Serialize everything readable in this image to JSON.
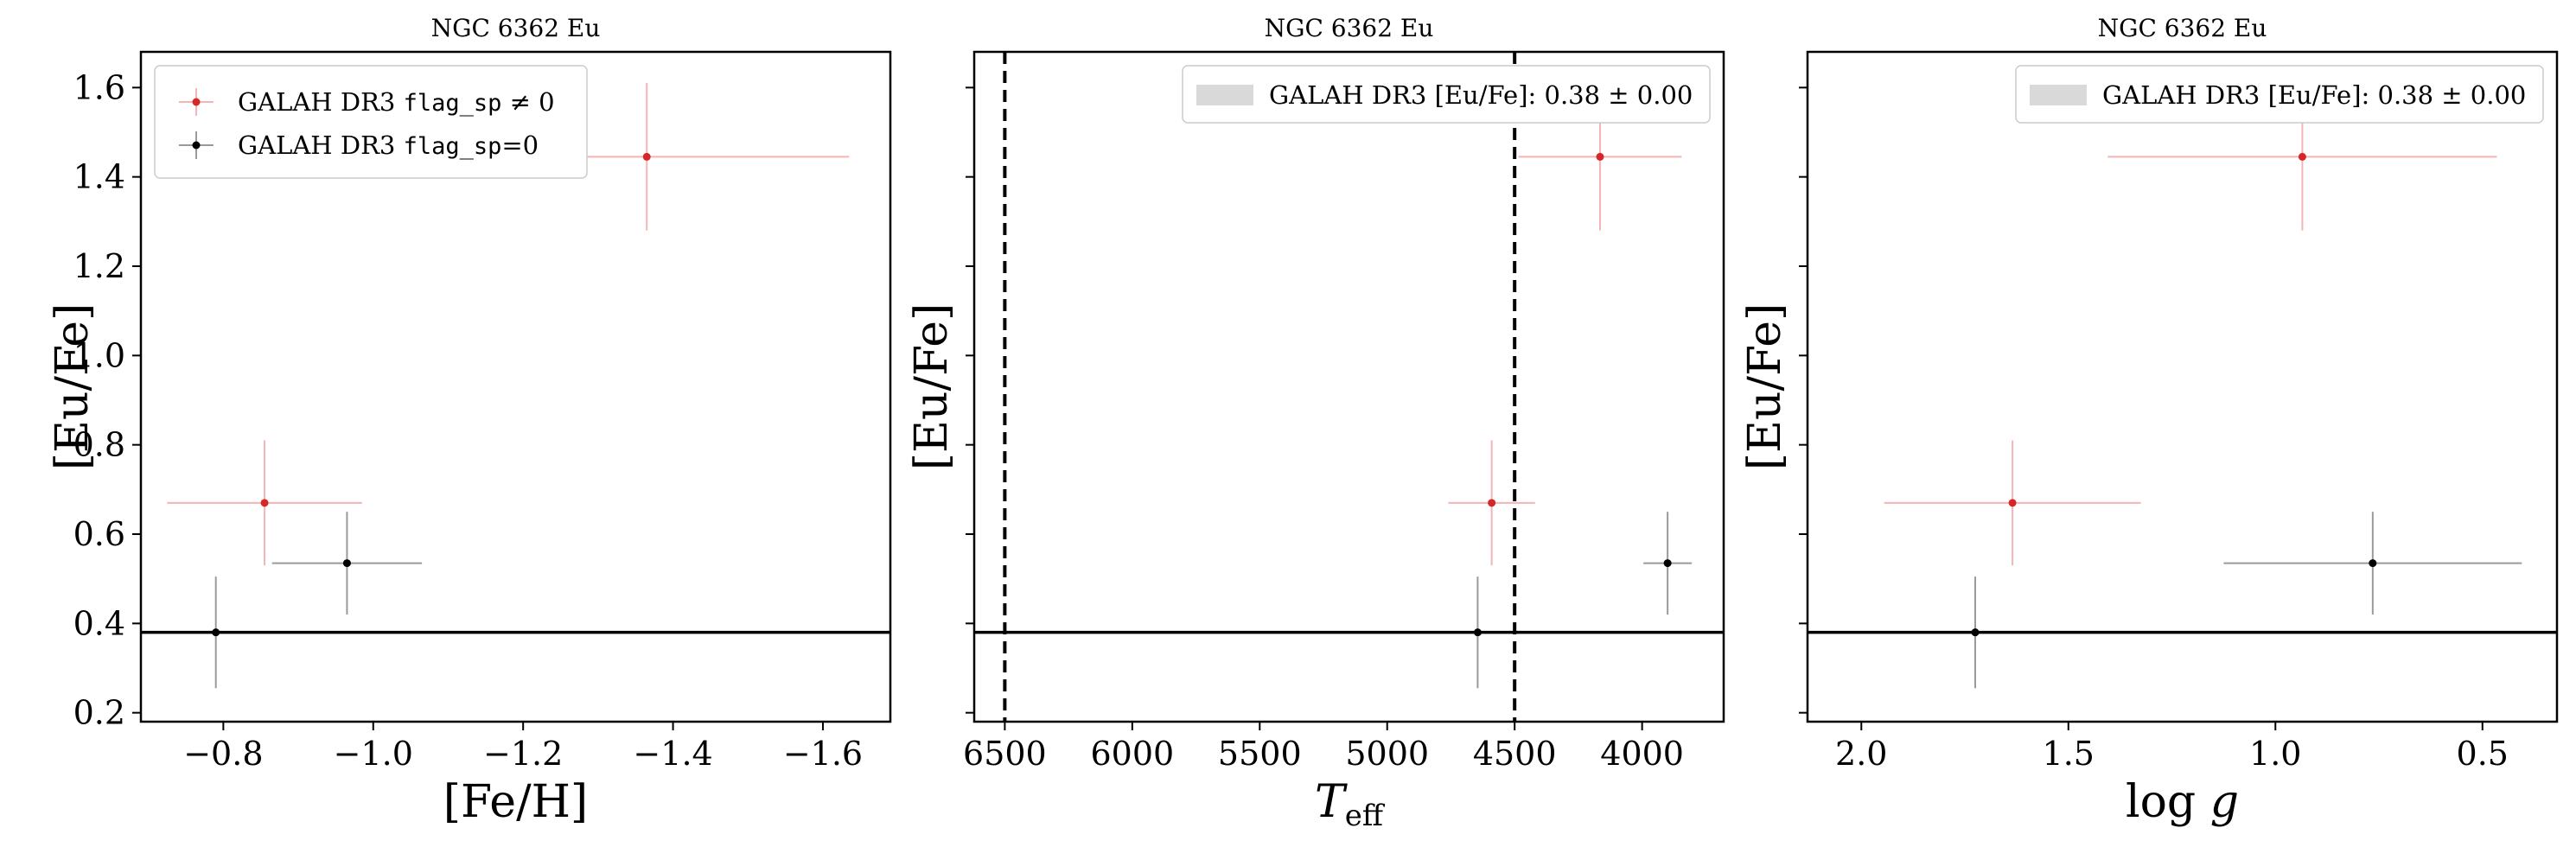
{
  "colors": {
    "flagged": "#d62728",
    "flagged_err": "#f3b5b5",
    "clean": "#000000",
    "clean_err": "#9a9a9a",
    "band": "#d9d9d9"
  },
  "chart_data": [
    {
      "type": "scatter",
      "title": "NGC 6362 Eu",
      "xlabel": "[Fe/H]",
      "ylabel": "[Eu/Fe]",
      "xlim": [
        -0.69,
        -1.69
      ],
      "ylim": [
        0.18,
        1.68
      ],
      "xticks": [
        -0.8,
        -1.0,
        -1.2,
        -1.4,
        -1.6
      ],
      "xtick_labels": [
        "−0.8",
        "−1.0",
        "−1.2",
        "−1.4",
        "−1.6"
      ],
      "yticks": [
        0.2,
        0.4,
        0.6,
        0.8,
        1.0,
        1.2,
        1.4,
        1.6
      ],
      "ytick_labels": [
        "0.2",
        "0.4",
        "0.6",
        "0.8",
        "1.0",
        "1.2",
        "1.4",
        "1.6"
      ],
      "hline": 0.38,
      "vlines": [],
      "legend": {
        "placement": "upper left",
        "entries": [
          {
            "marker": "flagged",
            "text": "GALAH DR3 ",
            "code": "flag_sp",
            "suffix": " ≠ 0"
          },
          {
            "marker": "clean",
            "text": "GALAH DR3 ",
            "code": "flag_sp",
            "suffix": "=0"
          }
        ]
      },
      "series": [
        {
          "name": "GALAH DR3 flag_sp ≠ 0",
          "points": [
            {
              "x": -0.855,
              "y": 0.67,
              "xerr": 0.13,
              "yerr": 0.14
            },
            {
              "x": -1.365,
              "y": 1.445,
              "xerr": 0.27,
              "yerr": 0.165
            }
          ]
        },
        {
          "name": "GALAH DR3 flag_sp=0",
          "points": [
            {
              "x": -0.79,
              "y": 0.38,
              "xerr": 0.0,
              "yerr": 0.125
            },
            {
              "x": -0.965,
              "y": 0.535,
              "xerr": 0.1,
              "yerr": 0.115
            }
          ]
        }
      ]
    },
    {
      "type": "scatter",
      "title": "NGC 6362 Eu",
      "xlabel": "T_eff",
      "ylabel": "[Eu/Fe]",
      "xlim": [
        6620,
        3680
      ],
      "ylim": [
        0.18,
        1.68
      ],
      "xticks": [
        6500,
        6000,
        5500,
        5000,
        4500,
        4000
      ],
      "xtick_labels": [
        "6500",
        "6000",
        "5500",
        "5000",
        "4500",
        "4000"
      ],
      "yticks": [
        0.2,
        0.4,
        0.6,
        0.8,
        1.0,
        1.2,
        1.4,
        1.6
      ],
      "ytick_labels": [],
      "hline": 0.38,
      "vlines": [
        6500,
        4500
      ],
      "legend": {
        "placement": "upper right",
        "entries": [
          {
            "marker": "band",
            "text": "GALAH DR3 [Eu/Fe]: 0.38 ± 0.00"
          }
        ]
      },
      "series": [
        {
          "name": "GALAH DR3 flag_sp ≠ 0",
          "points": [
            {
              "x": 4590,
              "y": 0.67,
              "xerr": 170,
              "yerr": 0.14
            },
            {
              "x": 4165,
              "y": 1.445,
              "xerr": 320,
              "yerr": 0.165
            }
          ]
        },
        {
          "name": "GALAH DR3 flag_sp=0",
          "points": [
            {
              "x": 4645,
              "y": 0.38,
              "xerr": 0,
              "yerr": 0.125
            },
            {
              "x": 3900,
              "y": 0.535,
              "xerr": 95,
              "yerr": 0.115
            }
          ]
        }
      ]
    },
    {
      "type": "scatter",
      "title": "NGC 6362 Eu",
      "xlabel": "log g",
      "ylabel": "[Eu/Fe]",
      "xlim": [
        2.13,
        0.32
      ],
      "ylim": [
        0.18,
        1.68
      ],
      "xticks": [
        2.0,
        1.5,
        1.0,
        0.5
      ],
      "xtick_labels": [
        "2.0",
        "1.5",
        "1.0",
        "0.5"
      ],
      "yticks": [
        0.2,
        0.4,
        0.6,
        0.8,
        1.0,
        1.2,
        1.4,
        1.6
      ],
      "ytick_labels": [],
      "hline": 0.38,
      "vlines": [],
      "legend": {
        "placement": "upper right",
        "entries": [
          {
            "marker": "band",
            "text": "GALAH DR3 [Eu/Fe]: 0.38 ± 0.00"
          }
        ]
      },
      "series": [
        {
          "name": "GALAH DR3 flag_sp ≠ 0",
          "points": [
            {
              "x": 1.635,
              "y": 0.67,
              "xerr": 0.31,
              "yerr": 0.14
            },
            {
              "x": 0.935,
              "y": 1.445,
              "xerr": 0.47,
              "yerr": 0.165
            }
          ]
        },
        {
          "name": "GALAH DR3 flag_sp=0",
          "points": [
            {
              "x": 1.725,
              "y": 0.38,
              "xerr": 0.0,
              "yerr": 0.125
            },
            {
              "x": 0.765,
              "y": 0.535,
              "xerr": 0.36,
              "yerr": 0.115
            }
          ]
        }
      ]
    }
  ]
}
